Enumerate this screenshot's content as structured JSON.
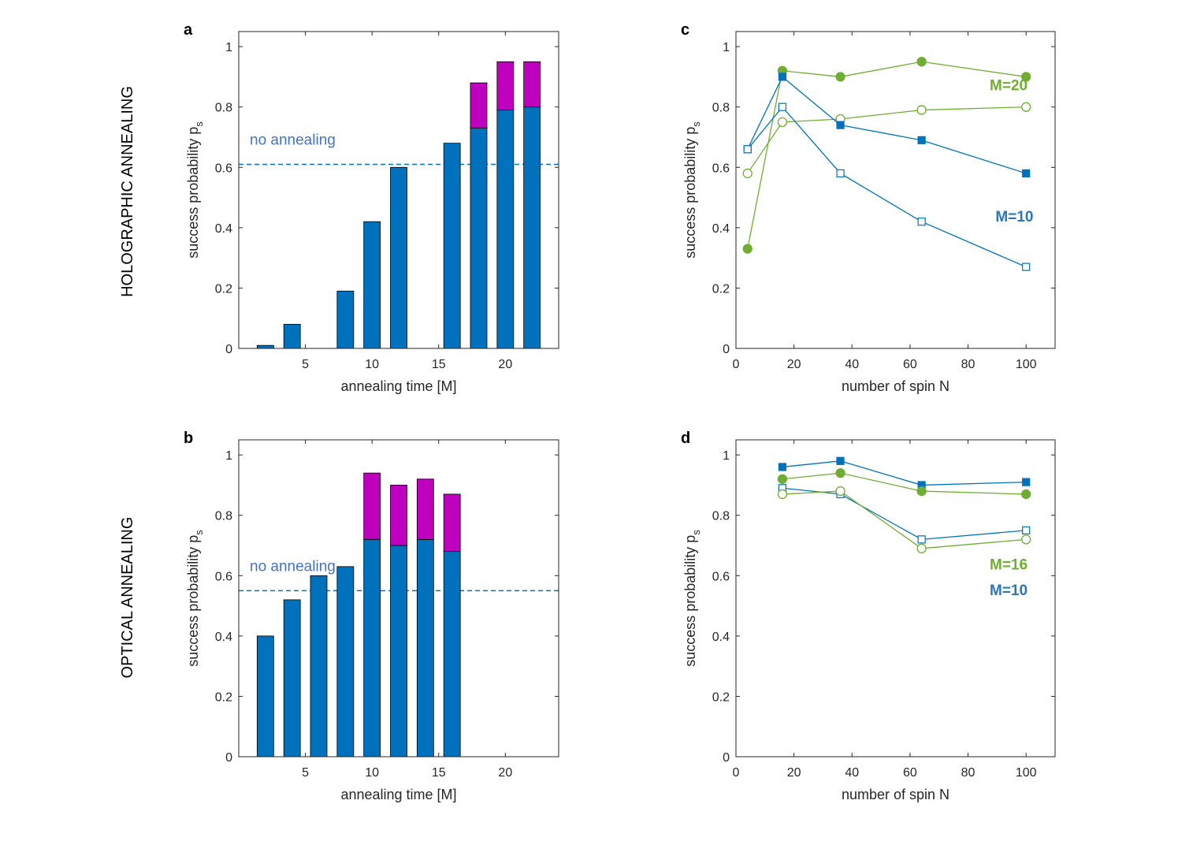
{
  "row_labels": [
    "HOLOGRAPHIC  ANNEALING",
    "OPTICAL  ANNEALING"
  ],
  "colors": {
    "blue": "#0072bd",
    "magenta": "#bf00bf",
    "green": "#70ad32",
    "text_blue": "#4472c4",
    "axis": "#262626"
  },
  "chart_data": [
    {
      "id": "a",
      "panel_label": "a",
      "type": "bar",
      "stacked": true,
      "xlabel": "annealing time [M]",
      "ylabel": "success probability p",
      "ylabel_sub": "s",
      "xlim": [
        0,
        24
      ],
      "ylim": [
        0,
        1.05
      ],
      "xticks": [
        5,
        10,
        15,
        20
      ],
      "yticks": [
        0,
        0.2,
        0.4,
        0.6,
        0.8,
        1
      ],
      "ytick_labels": [
        "0",
        "0.2",
        "0.4",
        "0.6",
        "0.8",
        "1"
      ],
      "x": [
        2,
        4,
        8,
        10,
        12,
        16,
        18,
        20,
        22
      ],
      "series": [
        {
          "name": "base",
          "color": "#0072bd",
          "values": [
            0.01,
            0.08,
            0.19,
            0.42,
            0.6,
            0.68,
            0.73,
            0.79,
            0.8
          ]
        },
        {
          "name": "extra",
          "color": "#bf00bf",
          "values": [
            0,
            0,
            0,
            0,
            0,
            0,
            0.15,
            0.16,
            0.15
          ]
        }
      ],
      "reference_line": {
        "y": 0.61,
        "label": "no annealing"
      }
    },
    {
      "id": "b",
      "panel_label": "b",
      "type": "bar",
      "stacked": true,
      "xlabel": "annealing time [M]",
      "ylabel": "success probability p",
      "ylabel_sub": "s",
      "xlim": [
        0,
        24
      ],
      "ylim": [
        0,
        1.05
      ],
      "xticks": [
        5,
        10,
        15,
        20
      ],
      "yticks": [
        0,
        0.2,
        0.4,
        0.6,
        0.8,
        1
      ],
      "ytick_labels": [
        "0",
        "0.2",
        "0.4",
        "0.6",
        "0.8",
        "1"
      ],
      "x": [
        2,
        4,
        6,
        8,
        10,
        12,
        14,
        16
      ],
      "series": [
        {
          "name": "base",
          "color": "#0072bd",
          "values": [
            0.4,
            0.52,
            0.6,
            0.63,
            0.72,
            0.7,
            0.72,
            0.68
          ]
        },
        {
          "name": "extra",
          "color": "#bf00bf",
          "values": [
            0,
            0,
            0,
            0,
            0.22,
            0.2,
            0.2,
            0.19
          ]
        }
      ],
      "reference_line": {
        "y": 0.55,
        "label": "no annealing"
      }
    },
    {
      "id": "c",
      "panel_label": "c",
      "type": "line",
      "xlabel": "number of spin N",
      "ylabel": "success probability p",
      "ylabel_sub": "s",
      "xlim": [
        0,
        110
      ],
      "ylim": [
        0,
        1.05
      ],
      "xticks": [
        0,
        20,
        40,
        60,
        80,
        100
      ],
      "yticks": [
        0,
        0.2,
        0.4,
        0.6,
        0.8,
        1
      ],
      "ytick_labels": [
        "0",
        "0.2",
        "0.4",
        "0.6",
        "0.8",
        "1"
      ],
      "series": [
        {
          "name": "M=20 filled",
          "color": "#70ad32",
          "marker": "circle",
          "filled": true,
          "x": [
            4,
            16,
            36,
            64,
            100
          ],
          "y": [
            0.33,
            0.92,
            0.9,
            0.95,
            0.9
          ]
        },
        {
          "name": "M=20 open",
          "color": "#70ad32",
          "marker": "circle",
          "filled": false,
          "x": [
            4,
            16,
            36,
            64,
            100
          ],
          "y": [
            0.58,
            0.75,
            0.76,
            0.79,
            0.8
          ]
        },
        {
          "name": "M=10 filled",
          "color": "#0072bd",
          "marker": "square",
          "filled": true,
          "x": [
            4,
            16,
            36,
            64,
            100
          ],
          "y": [
            0.66,
            0.9,
            0.74,
            0.69,
            0.58
          ]
        },
        {
          "name": "M=10 open",
          "color": "#0072bd",
          "marker": "square",
          "filled": false,
          "x": [
            4,
            16,
            36,
            64,
            100
          ],
          "y": [
            0.66,
            0.8,
            0.58,
            0.42,
            0.27
          ]
        }
      ],
      "annotations": [
        {
          "text": "M=20",
          "color": "#70ad32",
          "x": 94,
          "y": 0.855
        },
        {
          "text": "M=10",
          "color": "#2e75b6",
          "x": 96,
          "y": 0.42
        }
      ]
    },
    {
      "id": "d",
      "panel_label": "d",
      "type": "line",
      "xlabel": "number of spin N",
      "ylabel": "success probability p",
      "ylabel_sub": "s",
      "xlim": [
        0,
        110
      ],
      "ylim": [
        0,
        1.05
      ],
      "xticks": [
        0,
        20,
        40,
        60,
        80,
        100
      ],
      "yticks": [
        0,
        0.2,
        0.4,
        0.6,
        0.8,
        1
      ],
      "ytick_labels": [
        "0",
        "0.2",
        "0.4",
        "0.6",
        "0.8",
        "1"
      ],
      "series": [
        {
          "name": "M=10 filled",
          "color": "#0072bd",
          "marker": "square",
          "filled": true,
          "x": [
            16,
            36,
            64,
            100
          ],
          "y": [
            0.96,
            0.98,
            0.9,
            0.91
          ]
        },
        {
          "name": "M=16 filled",
          "color": "#70ad32",
          "marker": "circle",
          "filled": true,
          "x": [
            16,
            36,
            64,
            100
          ],
          "y": [
            0.92,
            0.94,
            0.88,
            0.87
          ]
        },
        {
          "name": "M=10 open",
          "color": "#0072bd",
          "marker": "square",
          "filled": false,
          "x": [
            16,
            36,
            64,
            100
          ],
          "y": [
            0.89,
            0.87,
            0.72,
            0.75
          ]
        },
        {
          "name": "M=16 open",
          "color": "#70ad32",
          "marker": "circle",
          "filled": false,
          "x": [
            16,
            36,
            64,
            100
          ],
          "y": [
            0.87,
            0.88,
            0.69,
            0.72
          ]
        }
      ],
      "annotations": [
        {
          "text": "M=16",
          "color": "#70ad32",
          "x": 94,
          "y": 0.62
        },
        {
          "text": "M=10",
          "color": "#2e75b6",
          "x": 94,
          "y": 0.535
        }
      ]
    }
  ]
}
